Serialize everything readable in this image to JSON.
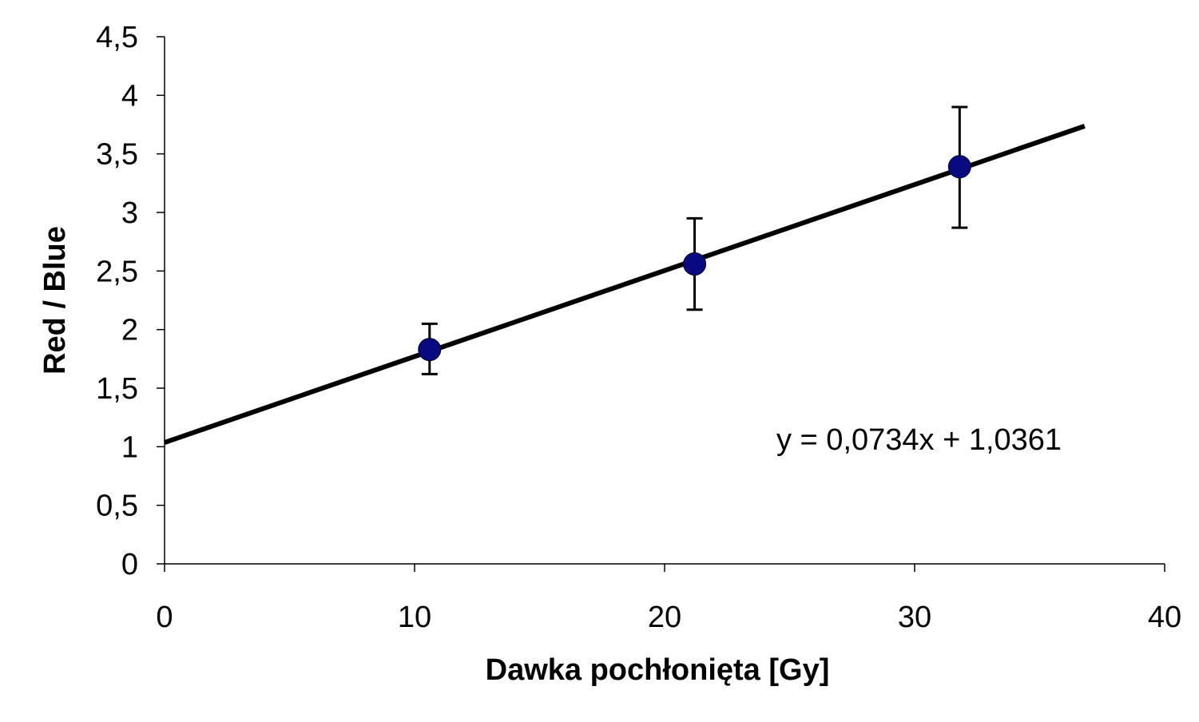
{
  "chart_data": {
    "type": "scatter",
    "title": "",
    "xlabel": "Dawka pochłonięta [Gy]",
    "ylabel": "Red / Blue",
    "xlim": [
      0,
      40
    ],
    "ylim": [
      0,
      4.5
    ],
    "xticks": [
      0,
      10,
      20,
      30,
      40
    ],
    "xtick_labels": [
      "0",
      "10",
      "20",
      "30",
      "40"
    ],
    "yticks": [
      0,
      0.5,
      1,
      1.5,
      2,
      2.5,
      3,
      3.5,
      4,
      4.5
    ],
    "ytick_labels": [
      "0",
      "0,5",
      "1",
      "1,5",
      "2",
      "2,5",
      "3",
      "3,5",
      "4",
      "4,5"
    ],
    "grid": false,
    "legend": "none",
    "series": [
      {
        "x": [
          10.6,
          21.2,
          31.8
        ],
        "y": [
          1.83,
          2.56,
          3.39
        ],
        "error_low": [
          1.62,
          2.17,
          2.87
        ],
        "error_high": [
          2.05,
          2.95,
          3.9
        ],
        "marker_color": "#0a0a80"
      }
    ],
    "trendline": {
      "slope": 0.0734,
      "intercept": 1.0361,
      "x_range": [
        0,
        36.8
      ],
      "equation_label": "y = 0,0734x + 1,0361",
      "color": "#000000"
    }
  }
}
